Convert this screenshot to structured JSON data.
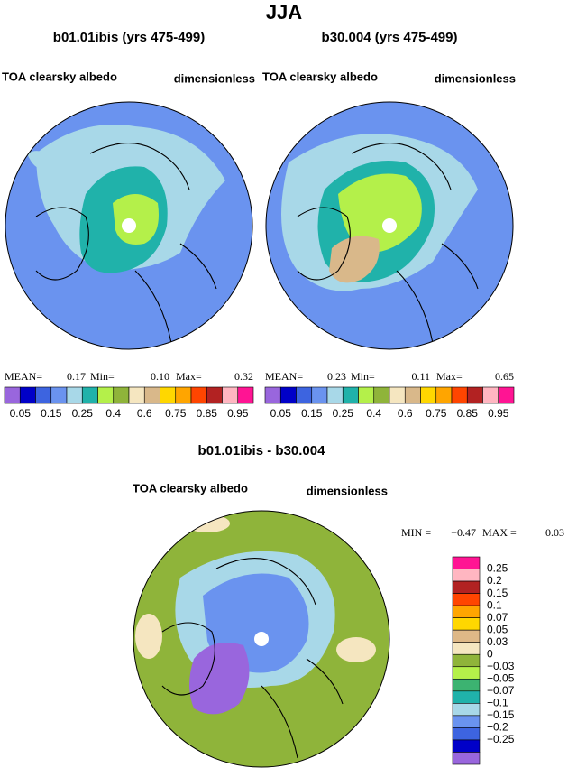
{
  "title": "JJA",
  "panels": [
    {
      "subtitle": "b01.01ibis (yrs 475-499)",
      "variable": "TOA clearsky albedo",
      "units": "dimensionless",
      "stats": [
        "MEAN=",
        "0.17",
        "Min=",
        "0.10",
        "Max=",
        "0.32"
      ],
      "colorbar": {
        "labels": [
          "0.05",
          "0.15",
          "0.25",
          "0.4",
          "0.6",
          "0.75",
          "0.85",
          "0.95"
        ],
        "colors": [
          "#9966dd",
          "#0000c8",
          "#3d64e0",
          "#6a93ef",
          "#a8d8e8",
          "#20b2aa",
          "#b4f04a",
          "#8fb43a",
          "#f5e6c0",
          "#d9b88a",
          "#ffd700",
          "#ffa500",
          "#ff4500",
          "#b22222",
          "#ffb6c1",
          "#ff1493"
        ]
      }
    },
    {
      "subtitle": "b30.004 (yrs 475-499)",
      "variable": "TOA clearsky albedo",
      "units": "dimensionless",
      "stats": [
        "MEAN=",
        "0.23",
        "Min=",
        "0.11",
        "Max=",
        "0.65"
      ],
      "colorbar": {
        "labels": [
          "0.05",
          "0.15",
          "0.25",
          "0.4",
          "0.6",
          "0.75",
          "0.85",
          "0.95"
        ],
        "colors": [
          "#9966dd",
          "#0000c8",
          "#3d64e0",
          "#6a93ef",
          "#a8d8e8",
          "#20b2aa",
          "#b4f04a",
          "#8fb43a",
          "#f5e6c0",
          "#d9b88a",
          "#ffd700",
          "#ffa500",
          "#ff4500",
          "#b22222",
          "#ffb6c1",
          "#ff1493"
        ]
      }
    }
  ],
  "difference": {
    "subtitle": "b01.01ibis - b30.004",
    "variable": "TOA clearsky albedo",
    "units": "dimensionless",
    "stats": [
      "MIN =",
      "−0.47",
      "MAX =",
      "0.03"
    ],
    "colorbar": {
      "labels": [
        "0.25",
        "0.2",
        "0.15",
        "0.1",
        "0.07",
        "0.05",
        "0.03",
        "0",
        "−0.03",
        "−0.05",
        "−0.07",
        "−0.1",
        "−0.15",
        "−0.2",
        "−0.25"
      ],
      "colors": [
        "#ff1493",
        "#ffb6c1",
        "#b22222",
        "#ff4500",
        "#ffa500",
        "#ffd700",
        "#deb887",
        "#f5e6c0",
        "#8fb43a",
        "#b4f04a",
        "#3cb371",
        "#20b2aa",
        "#a8d8e8",
        "#6a93ef",
        "#3d64e0",
        "#0000c8",
        "#9966dd"
      ]
    }
  }
}
